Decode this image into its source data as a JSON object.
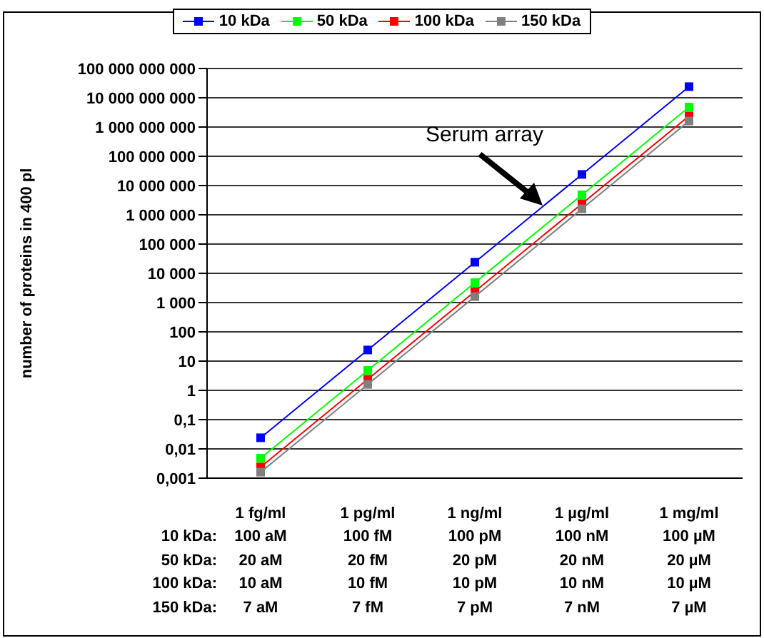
{
  "chart_data": {
    "type": "line",
    "ylabel": "number of proteins in 400 pl",
    "categories": [
      "1 fg/ml",
      "1 pg/ml",
      "1 ng/ml",
      "1 µg/ml",
      "1 mg/ml"
    ],
    "series": [
      {
        "name": "10 kDa",
        "color": "#0000ff",
        "values": [
          0.024,
          24,
          24000,
          24000000,
          24000000000
        ]
      },
      {
        "name": "50 kDa",
        "color": "#00ff00",
        "values": [
          0.0048,
          4.8,
          4800,
          4800000,
          4800000000
        ]
      },
      {
        "name": "100 kDa",
        "color": "#ff0000",
        "values": [
          0.0024,
          2.4,
          2400,
          2400000,
          2400000000
        ]
      },
      {
        "name": "150 kDa",
        "color": "#808080",
        "values": [
          0.0016,
          1.6,
          1600,
          1600000,
          1600000000
        ]
      }
    ],
    "log": "y",
    "ylim": [
      0.001,
      100000000000
    ],
    "yticks": [
      {
        "value": 0.001,
        "label": "0,001"
      },
      {
        "value": 0.01,
        "label": "0,01"
      },
      {
        "value": 0.1,
        "label": "0,1"
      },
      1,
      10,
      100,
      {
        "value": 1000,
        "label": "1 000"
      },
      {
        "value": 10000,
        "label": "10 000"
      },
      {
        "value": 100000,
        "label": "100 000"
      },
      {
        "value": 1000000,
        "label": "1 000 000"
      },
      {
        "value": 10000000,
        "label": "10 000 000"
      },
      {
        "value": 100000000,
        "label": "100 000 000"
      },
      {
        "value": 1000000000,
        "label": "1 000 000 000"
      },
      {
        "value": 10000000000,
        "label": "10 000 000 000"
      },
      {
        "value": 100000000000,
        "label": "100 000 000 000"
      }
    ],
    "grid": "y",
    "legend": "top",
    "marker": "square",
    "line_style": "solid",
    "annotations": [
      "Serum array",
      "10 kDa:",
      "100 aM",
      "100 fM",
      "100 pM",
      "100 nM",
      "100 µM",
      "50 kDa:",
      "20 aM",
      "20 fM",
      "20 pM",
      "20 nM",
      "20 µM",
      "100 kDa:",
      "10 aM",
      "10 fM",
      "10 pM",
      "10 nM",
      "10 µM",
      "150 kDa:",
      "7 aM",
      "7 fM",
      "7 pM",
      "7 nM",
      "7 µM"
    ]
  }
}
